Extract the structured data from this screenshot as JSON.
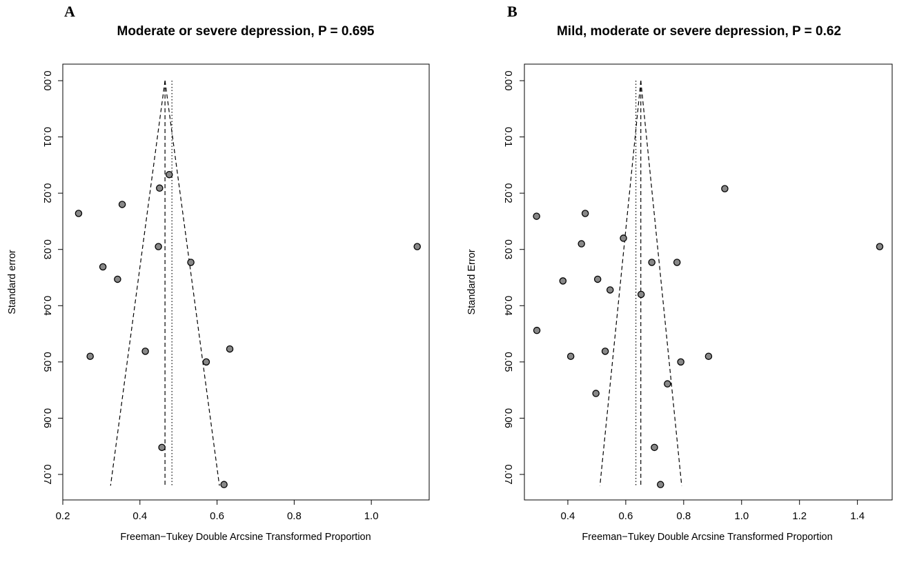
{
  "chart_data": [
    {
      "type": "scatter",
      "panel_label": "A",
      "title": "Moderate or severe depression, P =  0.695",
      "xlabel": "Freeman−Tukey Double Arcsine Transformed Proportion",
      "ylabel": "Standard error",
      "xlim": [
        0.2,
        1.15
      ],
      "ylim": [
        0.0,
        0.0735
      ],
      "y_reversed": true,
      "xticks": [
        "0.2",
        "0.4",
        "0.6",
        "0.8",
        "1.0"
      ],
      "xtick_values": [
        0.2,
        0.4,
        0.6,
        0.8,
        1.0
      ],
      "yticks": [
        "0.00",
        "0.01",
        "0.02",
        "0.03",
        "0.04",
        "0.05",
        "0.06",
        "0.07"
      ],
      "ytick_values": [
        0.0,
        0.01,
        0.02,
        0.03,
        0.04,
        0.05,
        0.06,
        0.07
      ],
      "funnel_center": 0.465,
      "funnel_max_se": 0.072,
      "pooled_estimate_dotted": 0.483,
      "points": [
        {
          "x": 0.476,
          "y": 0.0167
        },
        {
          "x": 0.451,
          "y": 0.0191
        },
        {
          "x": 0.354,
          "y": 0.022
        },
        {
          "x": 0.241,
          "y": 0.0236
        },
        {
          "x": 0.448,
          "y": 0.0295
        },
        {
          "x": 1.119,
          "y": 0.0295
        },
        {
          "x": 0.532,
          "y": 0.0323
        },
        {
          "x": 0.304,
          "y": 0.0331
        },
        {
          "x": 0.342,
          "y": 0.0353
        },
        {
          "x": 0.271,
          "y": 0.049
        },
        {
          "x": 0.414,
          "y": 0.0481
        },
        {
          "x": 0.633,
          "y": 0.0477
        },
        {
          "x": 0.572,
          "y": 0.05
        },
        {
          "x": 0.457,
          "y": 0.0652
        },
        {
          "x": 0.618,
          "y": 0.0718
        }
      ],
      "point_color": "#888888"
    },
    {
      "type": "scatter",
      "panel_label": "B",
      "title": "Mild, moderate or severe depression, P =  0.62",
      "xlabel": "Freeman−Tukey Double Arcsine Transformed Proportion",
      "ylabel": "Standard Error",
      "xlim": [
        0.25,
        1.52
      ],
      "ylim": [
        0.0,
        0.0735
      ],
      "y_reversed": true,
      "xticks": [
        "0.4",
        "0.6",
        "0.8",
        "1.0",
        "1.2",
        "1.4"
      ],
      "xtick_values": [
        0.4,
        0.6,
        0.8,
        1.0,
        1.2,
        1.4
      ],
      "yticks": [
        "0.00",
        "0.01",
        "0.02",
        "0.03",
        "0.04",
        "0.05",
        "0.06",
        "0.07"
      ],
      "ytick_values": [
        0.0,
        0.01,
        0.02,
        0.03,
        0.04,
        0.05,
        0.06,
        0.07
      ],
      "funnel_center": 0.652,
      "funnel_max_se": 0.072,
      "pooled_estimate_dotted": 0.635,
      "points": [
        {
          "x": 0.942,
          "y": 0.0192
        },
        {
          "x": 0.292,
          "y": 0.0241
        },
        {
          "x": 0.46,
          "y": 0.0236
        },
        {
          "x": 0.592,
          "y": 0.028
        },
        {
          "x": 0.447,
          "y": 0.029
        },
        {
          "x": 1.477,
          "y": 0.0295
        },
        {
          "x": 0.69,
          "y": 0.0323
        },
        {
          "x": 0.777,
          "y": 0.0323
        },
        {
          "x": 0.383,
          "y": 0.0356
        },
        {
          "x": 0.503,
          "y": 0.0353
        },
        {
          "x": 0.546,
          "y": 0.0372
        },
        {
          "x": 0.653,
          "y": 0.038
        },
        {
          "x": 0.293,
          "y": 0.0444
        },
        {
          "x": 0.41,
          "y": 0.049
        },
        {
          "x": 0.529,
          "y": 0.0481
        },
        {
          "x": 0.886,
          "y": 0.049
        },
        {
          "x": 0.79,
          "y": 0.05
        },
        {
          "x": 0.744,
          "y": 0.0539
        },
        {
          "x": 0.497,
          "y": 0.0556
        },
        {
          "x": 0.699,
          "y": 0.0652
        },
        {
          "x": 0.72,
          "y": 0.0718
        }
      ],
      "point_color": "#888888"
    }
  ]
}
